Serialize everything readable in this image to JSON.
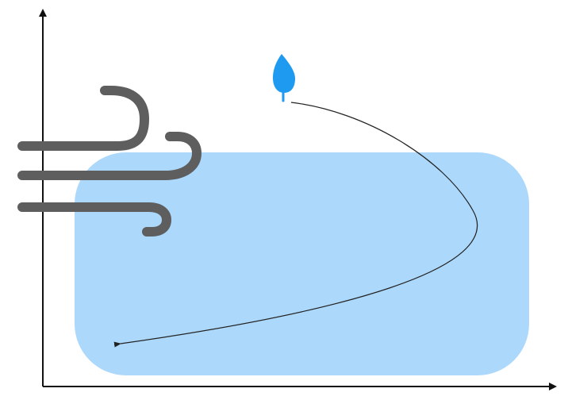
{
  "diagram": {
    "elements": [
      {
        "name": "vertical-axis",
        "kind": "arrow"
      },
      {
        "name": "horizontal-axis",
        "kind": "arrow"
      },
      {
        "name": "water-region",
        "kind": "rounded-rectangle"
      },
      {
        "name": "wind-icon",
        "kind": "icon"
      },
      {
        "name": "leaf-icon",
        "kind": "icon"
      },
      {
        "name": "leaf-trajectory",
        "kind": "curved-arrow"
      }
    ]
  },
  "colors": {
    "axis": "#111111",
    "water_fill": "#acd8fb",
    "wind_stroke": "#5e5e5e",
    "leaf_fill": "#1e9af0",
    "trajectory": "#222222"
  }
}
